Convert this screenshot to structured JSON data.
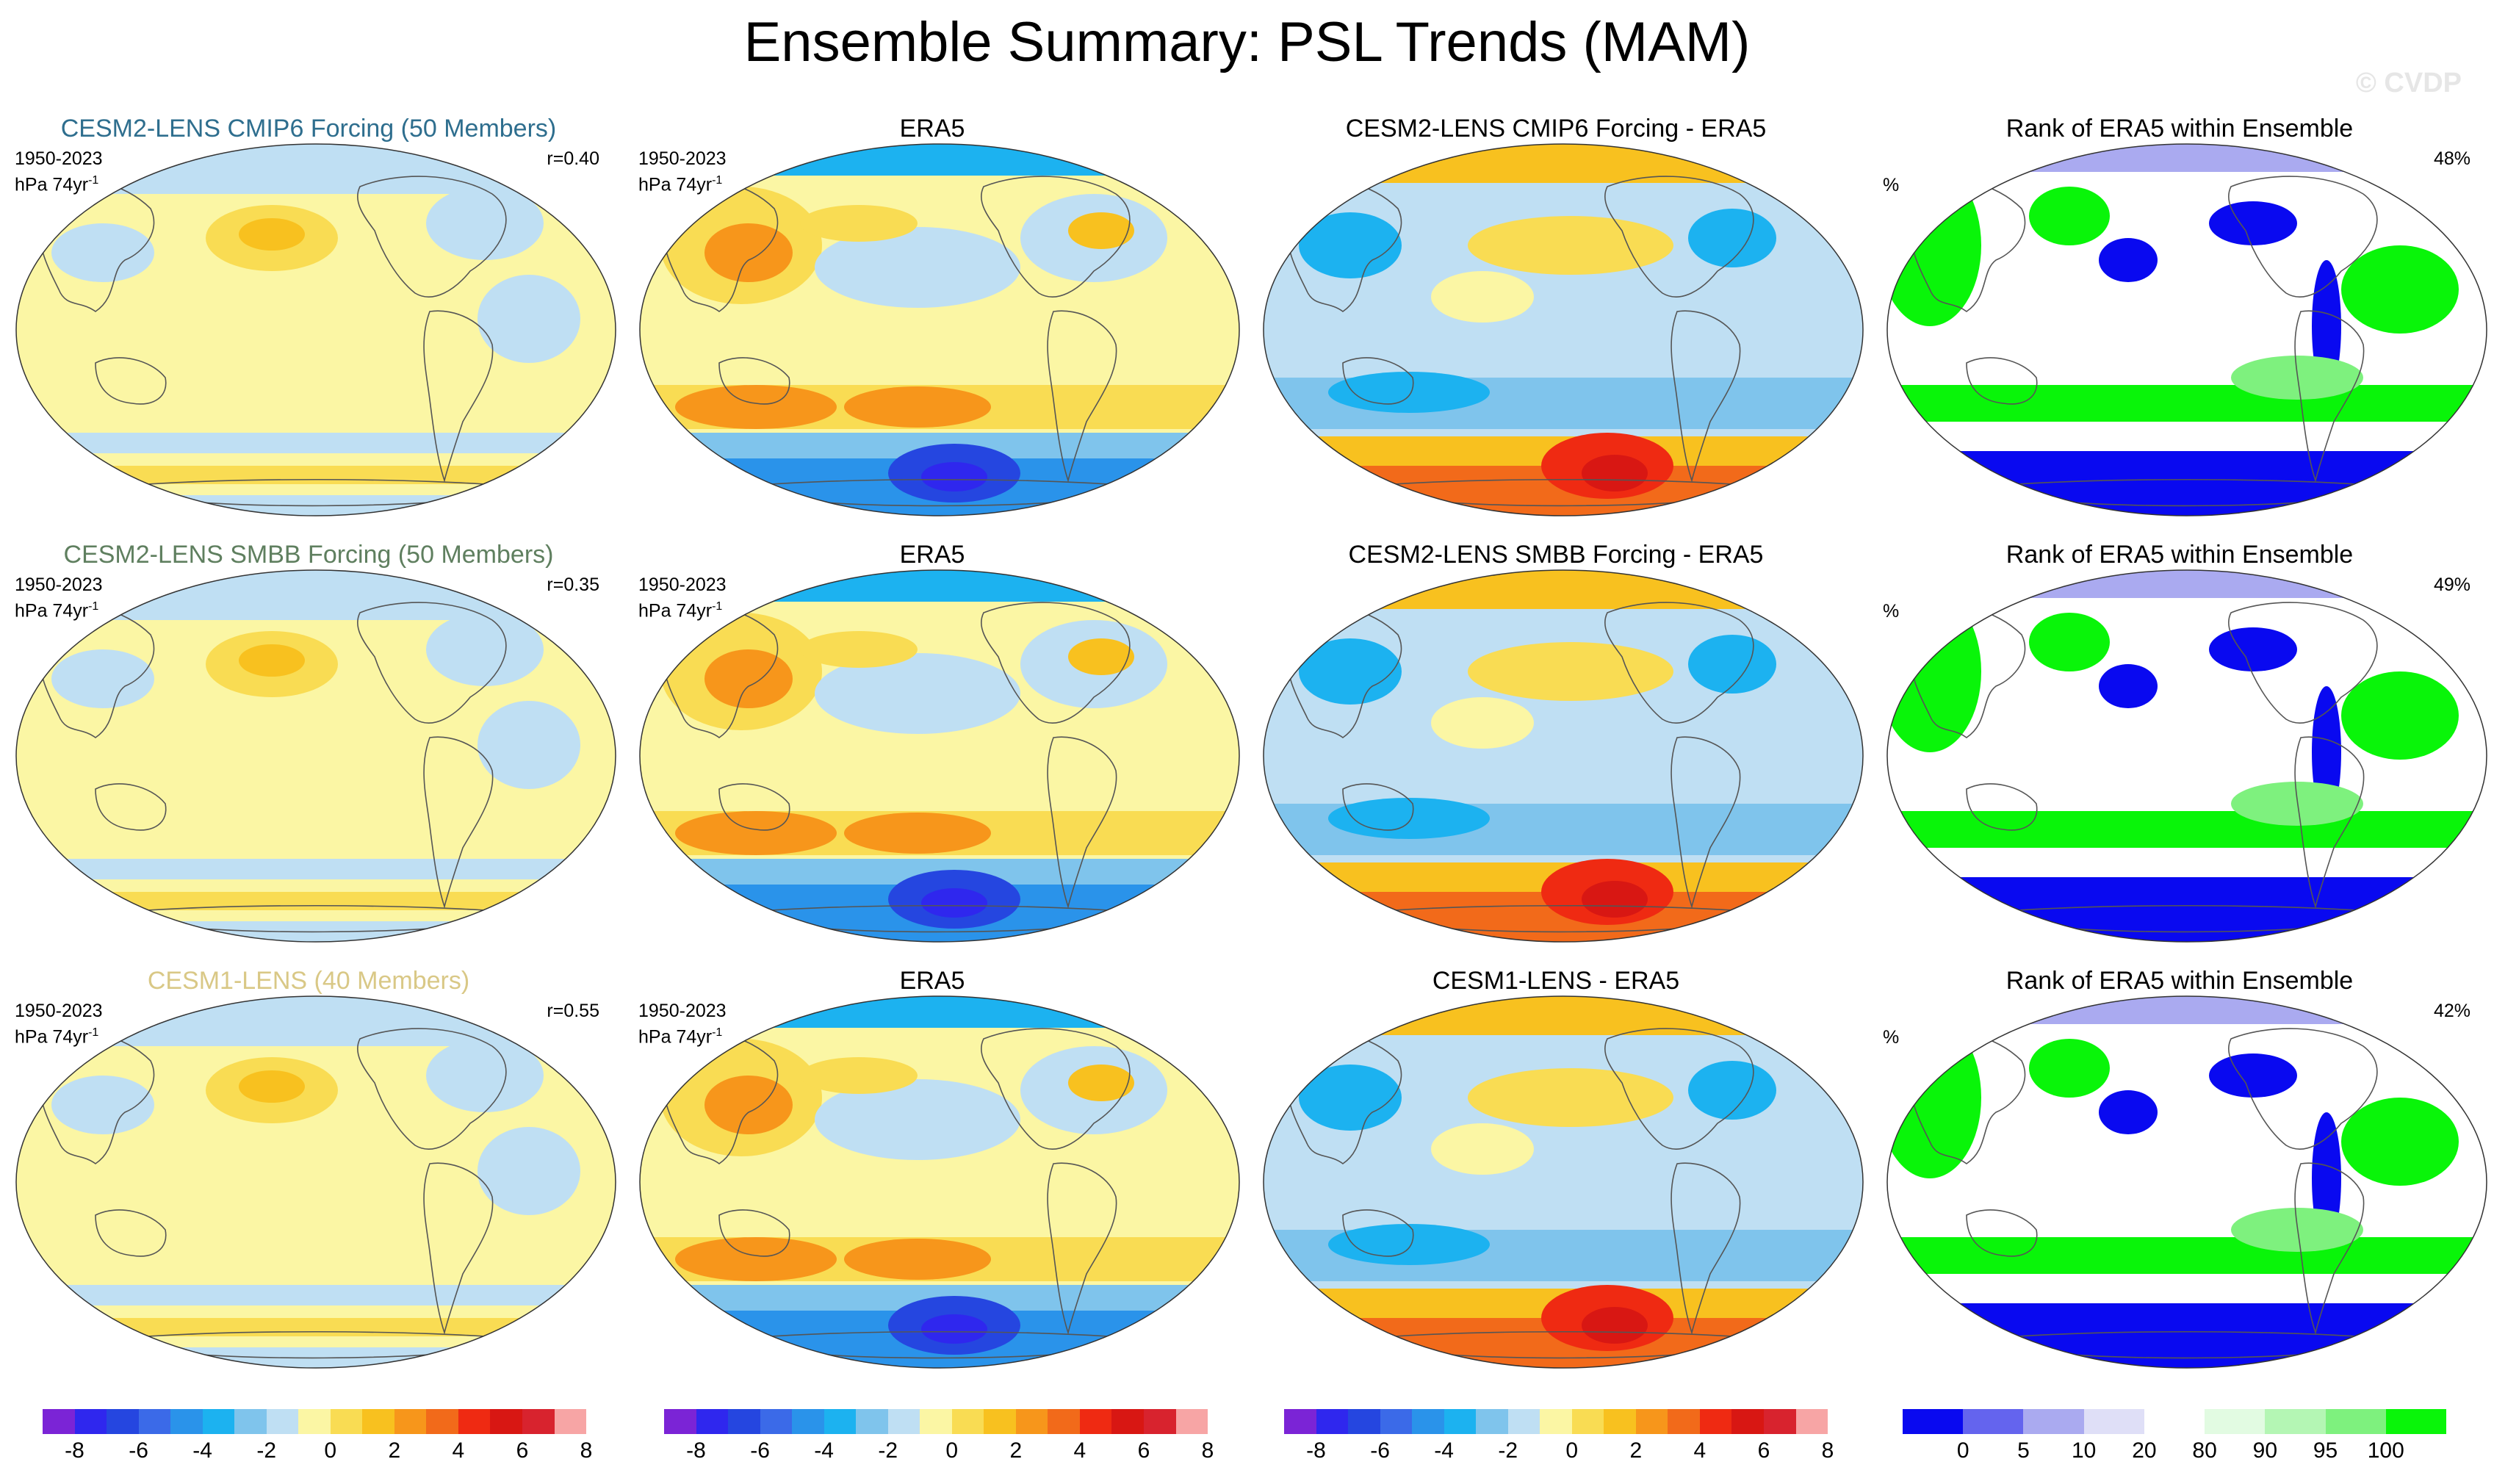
{
  "title": "Ensemble Summary: PSL Trends (MAM)",
  "watermark": "© CVDP",
  "colors": {
    "trend_scale": [
      "#7b24d6",
      "#2f27ee",
      "#2546e0",
      "#3b6ae8",
      "#2a93ea",
      "#1cb2f0",
      "#7fc4ec",
      "#bfdff3",
      "#fbf6a4",
      "#f9dc53",
      "#f8c11f",
      "#f7961b",
      "#f26a1a",
      "#ef2a12",
      "#d81713",
      "#d8232e",
      "#f7a5a5"
    ],
    "rank_scale": [
      "#0909f0",
      "#6464ee",
      "#aaaaf0",
      "#dfdff7",
      "#ffffff",
      "#e2fbe2",
      "#b4f6b4",
      "#7ef17e",
      "#09f509"
    ]
  },
  "rows": [
    {
      "model": {
        "title": "CESM2-LENS CMIP6 Forcing (50 Members)",
        "title_color": "#2e6e8e",
        "period": "1950-2023",
        "units": "hPa 74yr",
        "units_sup": "-1",
        "r": "r=0.40"
      },
      "obs": {
        "title": "ERA5",
        "period": "1950-2023",
        "units": "hPa 74yr",
        "units_sup": "-1"
      },
      "diff": {
        "title": "CESM2-LENS CMIP6 Forcing - ERA5"
      },
      "rank": {
        "title": "Rank of ERA5 within Ensemble",
        "pct_unit": "%",
        "pct": "48%"
      }
    },
    {
      "model": {
        "title": "CESM2-LENS SMBB Forcing (50 Members)",
        "title_color": "#5f7f5f",
        "period": "1950-2023",
        "units": "hPa 74yr",
        "units_sup": "-1",
        "r": "r=0.35"
      },
      "obs": {
        "title": "ERA5",
        "period": "1950-2023",
        "units": "hPa 74yr",
        "units_sup": "-1"
      },
      "diff": {
        "title": "CESM2-LENS SMBB Forcing - ERA5"
      },
      "rank": {
        "title": "Rank of ERA5 within Ensemble",
        "pct_unit": "%",
        "pct": "49%"
      }
    },
    {
      "model": {
        "title": "CESM1-LENS (40 Members)",
        "title_color": "#d9c886",
        "period": "1950-2023",
        "units": "hPa 74yr",
        "units_sup": "-1",
        "r": "r=0.55"
      },
      "obs": {
        "title": "ERA5",
        "period": "1950-2023",
        "units": "hPa 74yr",
        "units_sup": "-1"
      },
      "diff": {
        "title": "CESM1-LENS - ERA5"
      },
      "rank": {
        "title": "Rank of ERA5 within Ensemble",
        "pct_unit": "%",
        "pct": "42%"
      }
    }
  ],
  "colorbars": {
    "trend_labels": [
      "-8",
      "-6",
      "-4",
      "-2",
      "0",
      "2",
      "4",
      "6",
      "8"
    ],
    "rank_labels": [
      "0",
      "5",
      "10",
      "20",
      "80",
      "90",
      "95",
      "100"
    ]
  }
}
